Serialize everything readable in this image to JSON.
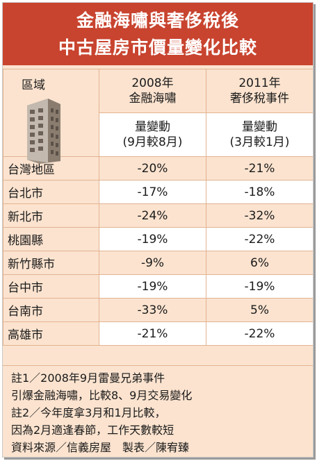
{
  "title_line1": "金融海嘯與奢侈稅後",
  "title_line2": "中古屋房市價量變化比較",
  "header": {
    "region": "區域",
    "col1_year": "2008年",
    "col1_event": "金融海嘯",
    "col2_year": "2011年",
    "col2_event": "奢侈稅事件",
    "col1_metric": "量變動",
    "col1_period": "(9月較8月)",
    "col2_metric": "量變動",
    "col2_period": "(3月較1月)"
  },
  "rows": [
    {
      "region": "台灣地區",
      "v2008": "-20%",
      "v2011": "-21%"
    },
    {
      "region": "台北市",
      "v2008": "-17%",
      "v2011": "-18%"
    },
    {
      "region": "新北市",
      "v2008": "-24%",
      "v2011": "-32%"
    },
    {
      "region": "桃園縣",
      "v2008": "-19%",
      "v2011": "-22%"
    },
    {
      "region": "新竹縣市",
      "v2008": "-9%",
      "v2011": "6%"
    },
    {
      "region": "台中市",
      "v2008": "-19%",
      "v2011": "-19%"
    },
    {
      "region": "台南市",
      "v2008": "-33%",
      "v2011": "5%"
    },
    {
      "region": "高雄市",
      "v2008": "-21%",
      "v2011": "-22%"
    }
  ],
  "notes": [
    "註1／2008年9月雷曼兄弟事件",
    "引爆金融海嘯，比較8、9月交易變化",
    "註2／今年度拿3月和1月比較，",
    "因為2月適逢春節，工作天數較短",
    "資料來源／信義房屋　製表／陳宥臻"
  ],
  "colors": {
    "banner": "#c8442f",
    "panel": "#fbe3cf",
    "grid": "#e2b391"
  },
  "icon": "office-building-icon"
}
